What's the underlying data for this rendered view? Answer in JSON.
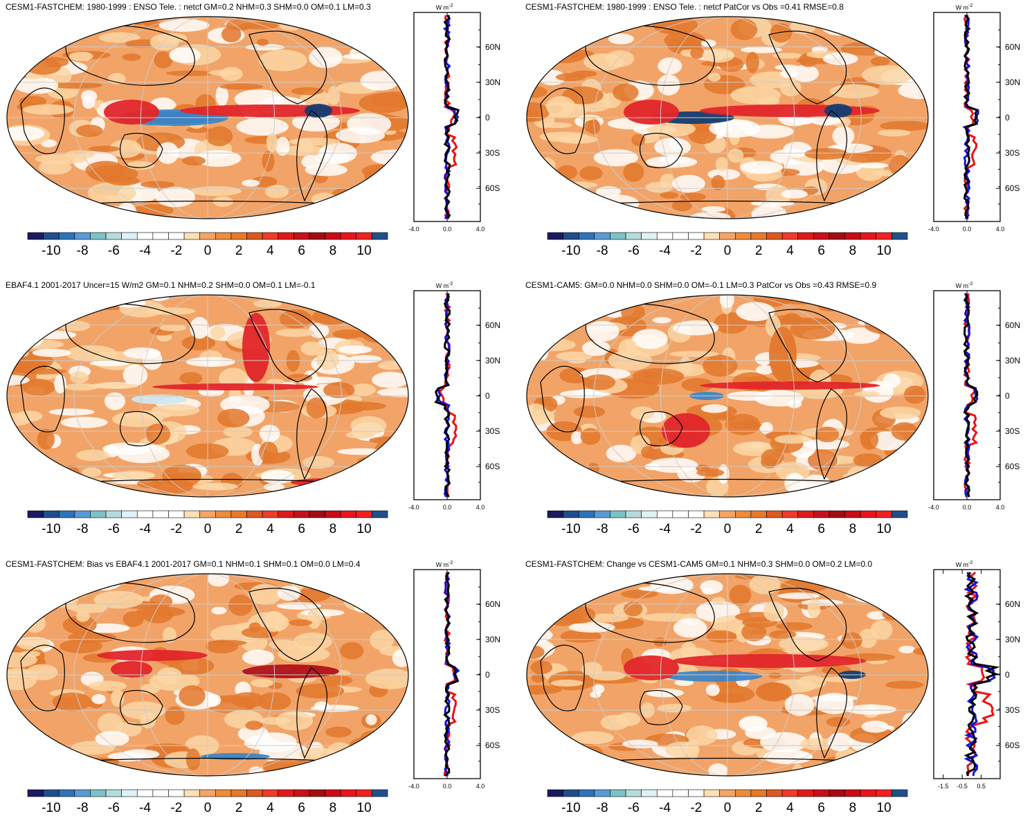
{
  "panels": [
    {
      "title": "CESM1-FASTCHEM: 1980-1999 : ENSO Tele. : netcf GM=0.2 NHM=0.3 SHM=0.0 OM=0.1 LM=0.3",
      "xticks": [
        "-4.0",
        "0.0",
        "4.0"
      ],
      "zonal_range": [
        -4,
        4
      ]
    },
    {
      "title": "CESM1-FASTCHEM: 1980-1999 : ENSO Tele. : netcf PatCor vs Obs =0.41 RMSE=0.8",
      "xticks": [
        "-4.0",
        "0.0",
        "4.0"
      ],
      "zonal_range": [
        -4,
        4
      ]
    },
    {
      "title": "EBAF4.1 2001-2017 Uncer=15 W/m2 GM=0.1 NHM=0.2 SHM=0.0 OM=0.1 LM=-0.1",
      "xticks": [
        "-4.0",
        "0.0",
        "4.0"
      ],
      "zonal_range": [
        -4,
        4
      ]
    },
    {
      "title": "CESM1-CAM5: GM=0.0 NHM=0.0 SHM=0.0 OM=-0.1 LM=0.3 PatCor vs Obs =0.43 RMSE=0.9",
      "xticks": [
        "-4.0",
        "0.0",
        "4.0"
      ],
      "zonal_range": [
        -4,
        4
      ]
    },
    {
      "title": "CESM1-FASTCHEM: Bias vs EBAF4.1 2001-2017 GM=0.1 NHM=0.1 SHM=0.1 OM=0.0 LM=0.4",
      "xticks": [
        "-4.0",
        "0.0",
        "4.0"
      ],
      "zonal_range": [
        -4,
        4
      ]
    },
    {
      "title": "CESM1-FASTCHEM: Change vs CESM1-CAM5 GM=0.1 NHM=0.3 SHM=0.0 OM=0.2 LM=0.0",
      "xticks": [
        "-1.5",
        "-0.5",
        "0.5"
      ],
      "zonal_range": [
        -2,
        1.5
      ]
    }
  ],
  "lat_labels": [
    "60N",
    "30N",
    "0",
    "30S",
    "60S"
  ],
  "unit": "W m",
  "unit_sup": "-2",
  "colorbar": {
    "labels": [
      "-10",
      "-8",
      "-6",
      "-4",
      "-2",
      "0",
      "2",
      "4",
      "6",
      "8",
      "10"
    ],
    "colors": [
      "#1a1a5e",
      "#1f4e8c",
      "#2f73b8",
      "#5a9ad6",
      "#7cc2c8",
      "#b4dcdc",
      "#dff1f4",
      "#ffffff",
      "#ffffff",
      "#ffffff",
      "#fde0b4",
      "#f5a566",
      "#ee8c3c",
      "#e77a2a",
      "#dc5a20",
      "#ef3b2a",
      "#e01a1a",
      "#c8101a",
      "#a30d12",
      "#cc0a14",
      "#e8141e",
      "#f02020",
      "#20508a"
    ]
  },
  "map_colors": {
    "base": "#f2a468",
    "dark": "#e2782d",
    "light": "#fbd7a6",
    "white": "#ffffff",
    "red": "#e2262a",
    "deepred": "#b01018",
    "blue": "#3f86c6",
    "navy": "#143d72",
    "paleblue": "#cfe8f2"
  },
  "line_colors": {
    "model": "#ee1111",
    "obs": "#1111dd",
    "other": "#000000"
  }
}
